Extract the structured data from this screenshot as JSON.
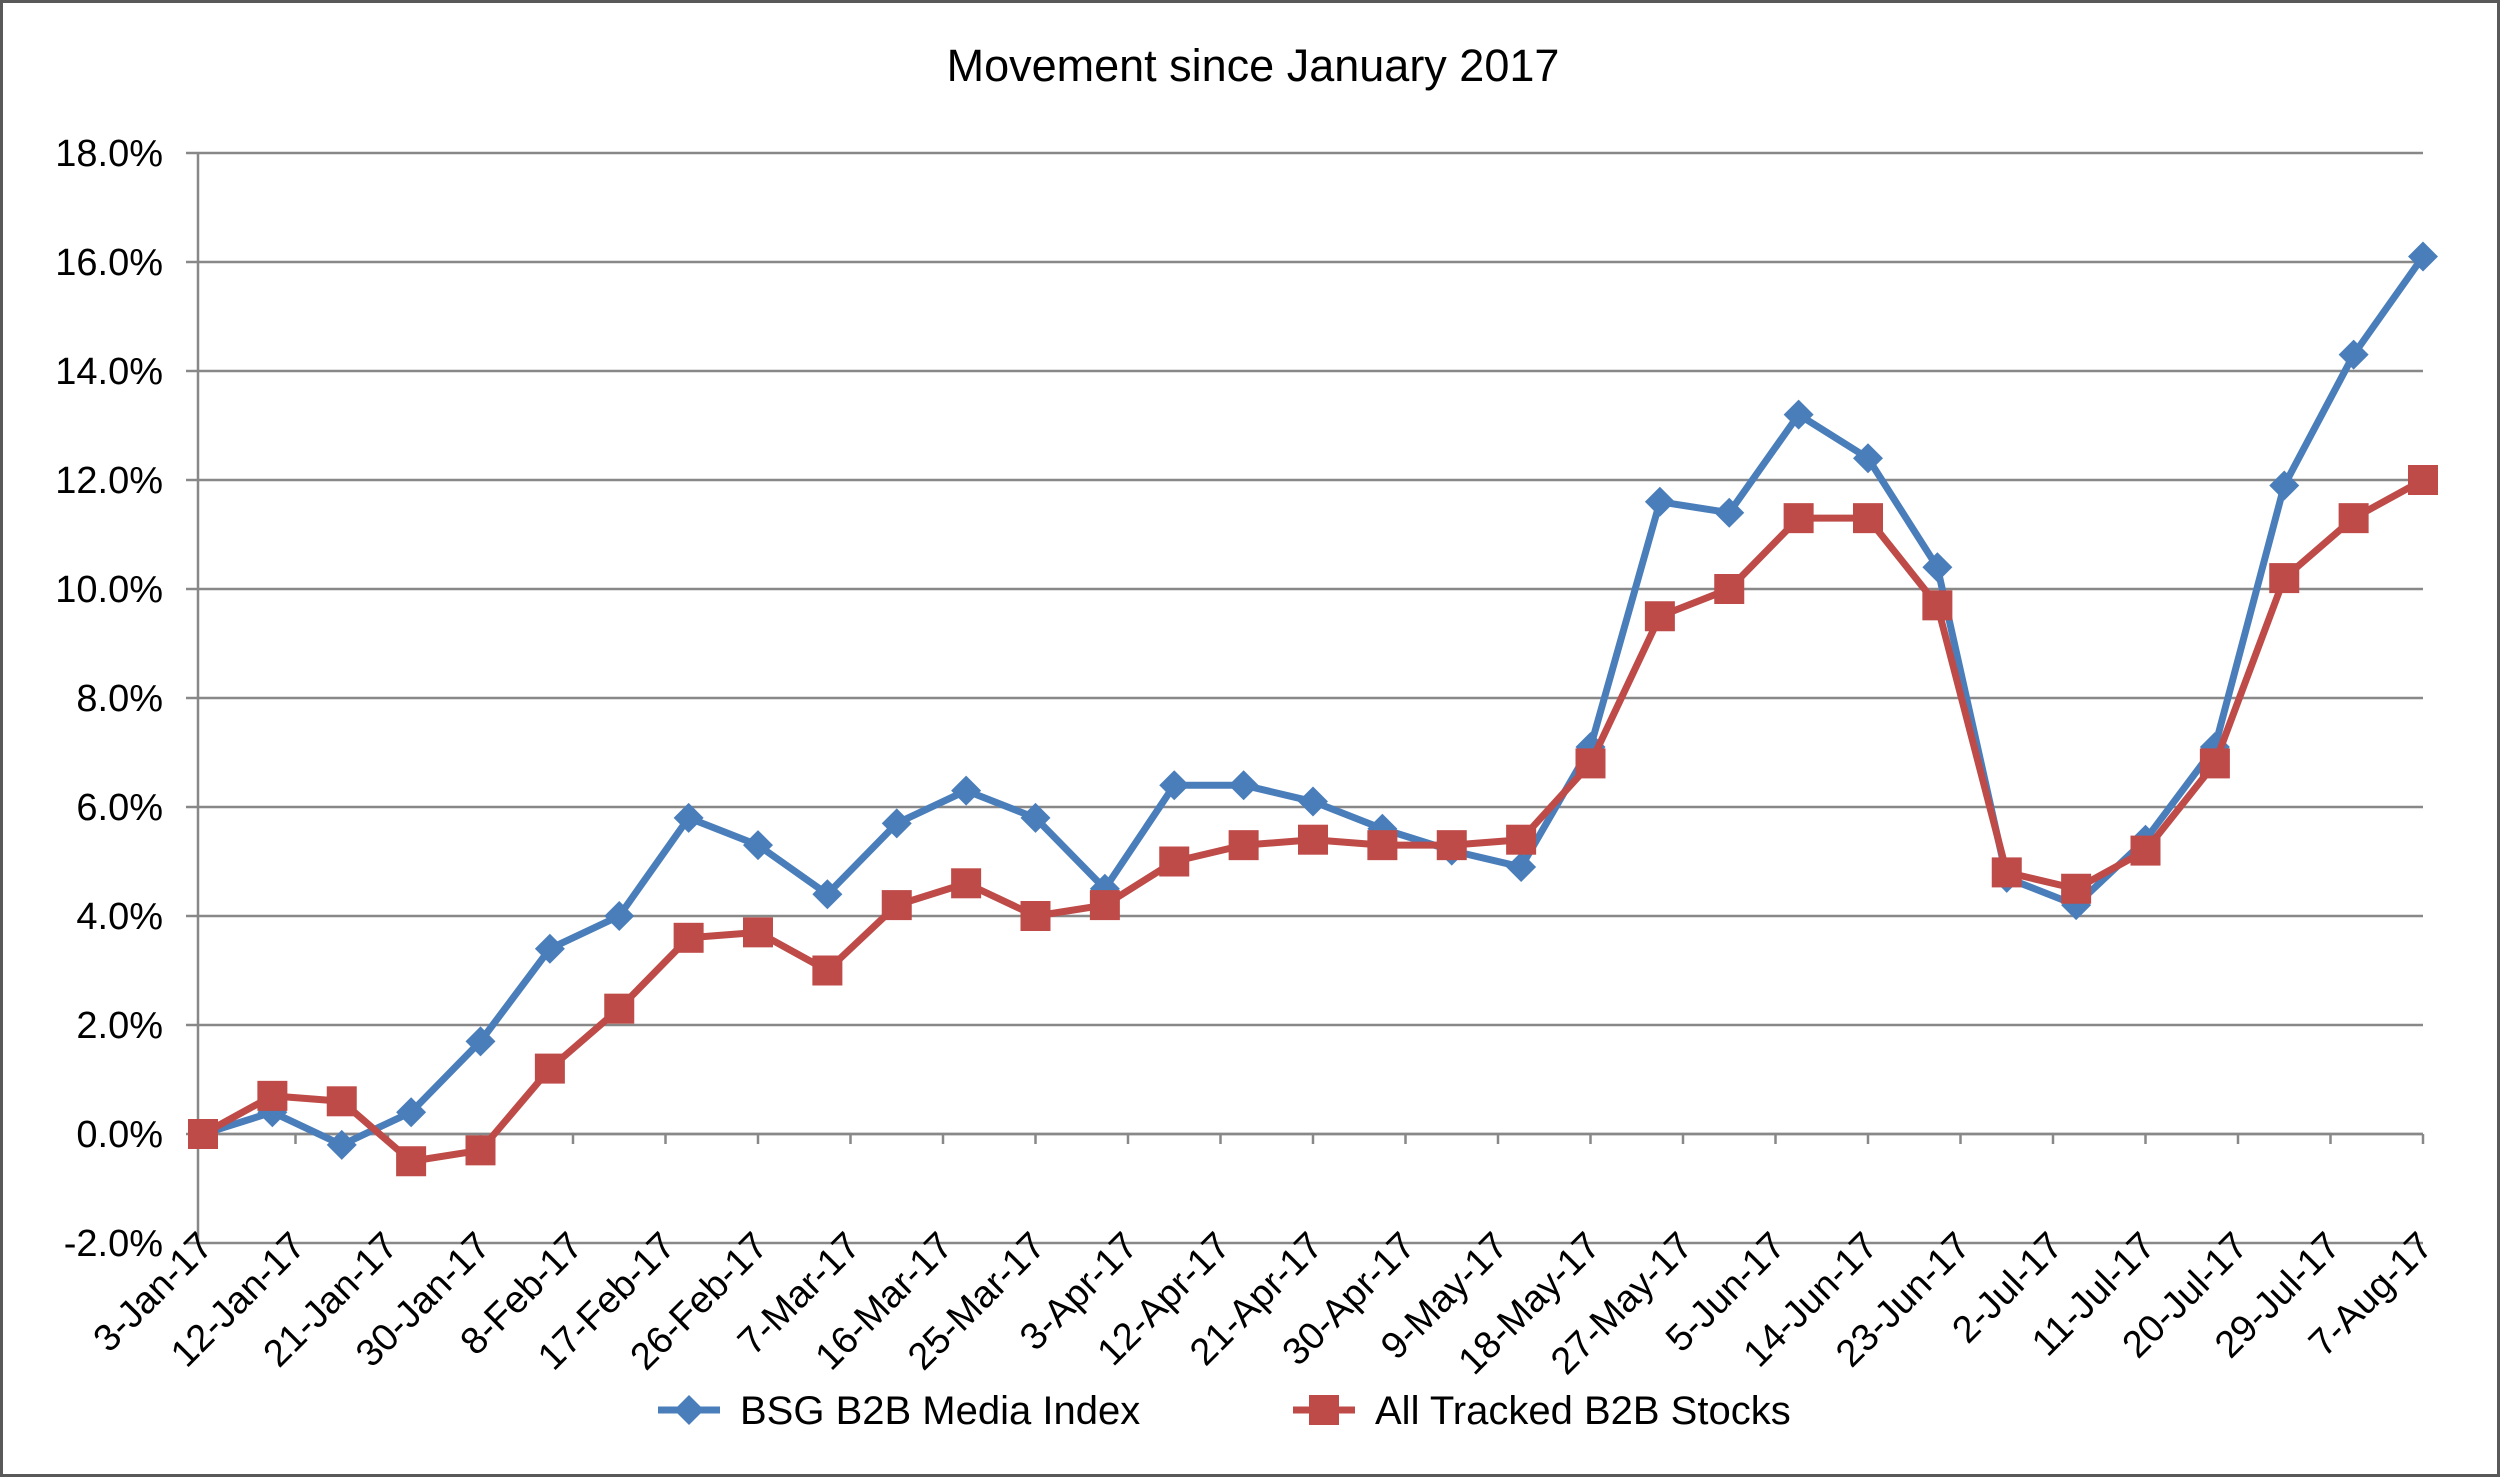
{
  "chart_data": {
    "type": "line",
    "title": "Movement since January 2017",
    "xlabel": "",
    "ylabel": "",
    "ylim": [
      -0.02,
      0.18
    ],
    "y_ticks": [
      "-2.0%",
      "0.0%",
      "2.0%",
      "4.0%",
      "6.0%",
      "8.0%",
      "10.0%",
      "12.0%",
      "14.0%",
      "16.0%",
      "18.0%"
    ],
    "x_tick_labels": [
      "3-Jan-17",
      "12-Jan-17",
      "21-Jan-17",
      "30-Jan-17",
      "8-Feb-17",
      "17-Feb-17",
      "26-Feb-17",
      "7-Mar-17",
      "16-Mar-17",
      "25-Mar-17",
      "3-Apr-17",
      "12-Apr-17",
      "21-Apr-17",
      "30-Apr-17",
      "9-May-17",
      "18-May-17",
      "27-May-17",
      "5-Jun-17",
      "14-Jun-17",
      "23-Jun-17",
      "2-Jul-17",
      "11-Jul-17",
      "20-Jul-17",
      "29-Jul-17",
      "7-Aug-17"
    ],
    "grid": true,
    "legend_position": "bottom",
    "series": [
      {
        "name": "BSG B2B Media Index",
        "color": "#4a7ebb",
        "marker": "diamond",
        "values": [
          0.0,
          0.004,
          -0.002,
          0.004,
          0.017,
          0.034,
          0.04,
          0.058,
          0.053,
          0.044,
          0.057,
          0.063,
          0.058,
          0.045,
          0.064,
          0.064,
          0.061,
          0.056,
          0.052,
          0.049,
          0.071,
          0.116,
          0.114,
          0.132,
          0.124,
          0.104,
          0.047,
          0.042,
          0.054,
          0.071,
          0.119,
          0.143,
          0.161
        ]
      },
      {
        "name": "All Tracked B2B Stocks",
        "color": "#be4b48",
        "marker": "square",
        "values": [
          0.0,
          0.007,
          0.006,
          -0.005,
          -0.003,
          0.012,
          0.023,
          0.036,
          0.037,
          0.03,
          0.042,
          0.046,
          0.04,
          0.042,
          0.05,
          0.053,
          0.054,
          0.053,
          0.053,
          0.054,
          0.068,
          0.095,
          0.1,
          0.113,
          0.113,
          0.097,
          0.048,
          0.045,
          0.052,
          0.068,
          0.102,
          0.113,
          0.12
        ]
      }
    ]
  }
}
